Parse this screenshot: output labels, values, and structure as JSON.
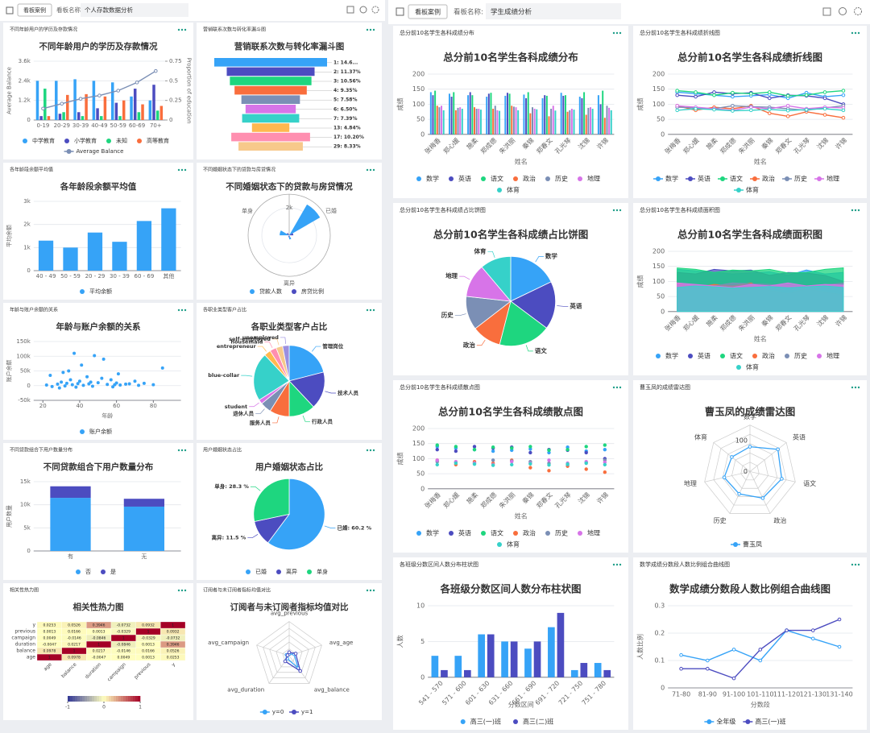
{
  "left": {
    "header": {
      "tab": "看板案例",
      "name_label": "看板名称:",
      "name": "个人存款数据分析"
    },
    "panels": [
      {
        "header": "不同年龄用户的学历及存款情况",
        "title": "不同年龄用户的学历及存款情况",
        "type": "bar",
        "categories": [
          "0-19",
          "20-29",
          "30-39",
          "40-49",
          "50-59",
          "60-69",
          "70+"
        ],
        "ylim": [
          0,
          3600
        ],
        "yticks": [
          0,
          {
            "value": 1200,
            "label": "1.2k"
          },
          {
            "value": 2400,
            "label": "2.4k"
          },
          {
            "value": 3600,
            "label": "3.6k"
          }
        ],
        "y2lim": [
          0,
          0.75
        ],
        "y2ticks": [
          0,
          0.25,
          0.5,
          0.75
        ],
        "ylabel": "Average Balance",
        "y2label": "Proportion of education",
        "series": [
          {
            "name": "中学教育",
            "color": "#36a3f7",
            "axis": "y2",
            "values": [
              0.5,
              0.5,
              0.52,
              0.5,
              0.48,
              0.3,
              0.25
            ]
          },
          {
            "name": "小学教育",
            "color": "#4c4cc0",
            "axis": "y2",
            "values": [
              0.05,
              0.08,
              0.1,
              0.15,
              0.22,
              0.4,
              0.45
            ]
          },
          {
            "name": "未知",
            "color": "#1ed67f",
            "axis": "y2",
            "values": [
              0.4,
              0.1,
              0.05,
              0.05,
              0.05,
              0.1,
              0.12
            ]
          },
          {
            "name": "高等教育",
            "color": "#f96e3d",
            "axis": "y2",
            "values": [
              0.05,
              0.32,
              0.33,
              0.3,
              0.25,
              0.2,
              0.18
            ]
          },
          {
            "name": "Average Balance",
            "color": "#7b8fb5",
            "type": "line",
            "values": [
              700,
              1000,
              1300,
              1500,
              1800,
              2300,
              3000
            ]
          }
        ]
      },
      {
        "header": "营销联系次数与转化率漏斗图",
        "title": "营销联系次数与转化率漏斗图",
        "type": "funnel",
        "labels": [
          "1: 14.6...",
          "2: 11.37%",
          "3: 10.56%",
          "4: 9.35%",
          "5: 7.58%",
          "6: 6.50%",
          "7: 7.39%",
          "13: 4.84%",
          "17: 10.20%",
          "29: 8.33%"
        ],
        "values": [
          14.6,
          11.37,
          10.56,
          9.35,
          7.58,
          6.5,
          7.39,
          4.84,
          10.2,
          8.33
        ],
        "colors": [
          "#36a3f7",
          "#4c4cc0",
          "#1ed67f",
          "#f96e3d",
          "#7b8fb5",
          "#d774e8",
          "#36d1c9",
          "#ffb84f",
          "#ff8fb0",
          "#f7c98b"
        ]
      },
      {
        "header": "各年龄段余额平均值",
        "title": "各年龄段余额平均值",
        "type": "bar",
        "categories": [
          "40 - 49",
          "50 - 59",
          "20 - 29",
          "30 - 39",
          "60 - 69",
          "其他"
        ],
        "ylim": [
          0,
          3000
        ],
        "yticks": [
          0,
          {
            "value": 1000,
            "label": "1k"
          },
          {
            "value": 2000,
            "label": "2k"
          },
          {
            "value": 3000,
            "label": "3k"
          }
        ],
        "ylabel": "平均余额",
        "series": [
          {
            "name": "平均余额",
            "color": "#36a3f7",
            "values": [
              1300,
              1000,
              1650,
              1250,
              2150,
              2700
            ]
          }
        ]
      },
      {
        "header": "不同婚姻状态下的贷款与房贷情况",
        "title": "不同婚姻状态下的贷款与房贷情况",
        "type": "polar",
        "categories": [
          "已婚",
          "离异",
          "单身"
        ],
        "rlim": [
          0,
          3000
        ],
        "rticks": [
          {
            "value": 2000,
            "label": "2k"
          }
        ],
        "series": [
          {
            "name": "贷款人数",
            "color": "#36a3f7",
            "values": [
              2600,
              300,
              700
            ]
          },
          {
            "name": "房贷比例",
            "color": "#4c4cc0",
            "values": [
              300,
              150,
              200
            ]
          }
        ]
      },
      {
        "header": "年龄与账户余额的关系",
        "title": "年龄与账户余额的关系",
        "type": "scatter",
        "xlabel": "年龄",
        "ylabel": "账户余额",
        "xlim": [
          15,
          95
        ],
        "xticks": [
          20,
          40,
          60,
          80
        ],
        "ylim": [
          -50000,
          150000
        ],
        "yticks": [
          {
            "value": -50000,
            "label": "-50k"
          },
          0,
          {
            "value": 50000,
            "label": "50k"
          },
          {
            "value": 100000,
            "label": "100k"
          },
          {
            "value": 150000,
            "label": "150k"
          }
        ],
        "series": [
          {
            "name": "账户余额",
            "color": "#36a3f7",
            "x": [
              22,
              25,
              28,
              30,
              32,
              33,
              35,
              36,
              38,
              40,
              42,
              44,
              45,
              47,
              50,
              52,
              55,
              58,
              60,
              62,
              65,
              70,
              75,
              80,
              85,
              24,
              31,
              37,
              41,
              48,
              53,
              57,
              29,
              34,
              39,
              46,
              59,
              61,
              67,
              72
            ],
            "values": [
              2000,
              -3000,
              5000,
              12000,
              -1000,
              8000,
              20000,
              3000,
              -5000,
              15000,
              1000,
              30000,
              6000,
              -2000,
              10000,
              25000,
              4000,
              -4000,
              9000,
              2000,
              5000,
              15000,
              8000,
              3000,
              60000,
              35000,
              45000,
              110000,
              70000,
              102000,
              90000,
              20000,
              -8000,
              50000,
              7000,
              12000,
              3000,
              40000,
              6000,
              1000
            ]
          }
        ]
      },
      {
        "header": "各职业类型客户占比",
        "title": "各职业类型客户占比",
        "type": "pie",
        "legend": false,
        "categories": [
          "管理岗位",
          "技术人员",
          "行政人员",
          "服务人员",
          "退休人员",
          "student",
          "blue-collar",
          "entrepreneur",
          "housemaid",
          "self-employed",
          "unemployed"
        ],
        "values": [
          21,
          17,
          12,
          9,
          5,
          2,
          22,
          3,
          3,
          3,
          3
        ],
        "colors": [
          "#36a3f7",
          "#4c4cc0",
          "#1ed67f",
          "#f96e3d",
          "#7b8fb5",
          "#d774e8",
          "#36d1c9",
          "#ffb84f",
          "#ff8fb0",
          "#f7c98b",
          "#9b8fe0"
        ]
      },
      {
        "header": "不同贷款组合下用户数量分布",
        "title": "不同贷款组合下用户数量分布",
        "type": "bar",
        "stacked": true,
        "categories": [
          "有",
          "无"
        ],
        "ylabel": "用户数量",
        "ylim": [
          0,
          15000
        ],
        "yticks": [
          0,
          {
            "value": 5000,
            "label": "5k"
          },
          {
            "value": 10000,
            "label": "10k"
          },
          {
            "value": 15000,
            "label": "15k"
          }
        ],
        "series": [
          {
            "name": "否",
            "color": "#36a3f7",
            "values": [
              11500,
              9600
            ]
          },
          {
            "name": "是",
            "color": "#4c4cc0",
            "values": [
              2500,
              1700
            ]
          }
        ]
      },
      {
        "header": "用户婚姻状态占比",
        "title": "用户婚姻状态占比",
        "type": "pie",
        "legend": true,
        "categories": [
          "已婚",
          "离异",
          "单身"
        ],
        "values": [
          60.2,
          11.5,
          28.3
        ],
        "value_labels": [
          "已婚: 60.2 %",
          "离异: 11.5 %",
          "单身: 28.3 %"
        ],
        "colors": [
          "#36a3f7",
          "#4c4cc0",
          "#1ed67f"
        ]
      },
      {
        "header": "相关性热力图",
        "title": "相关性热力图",
        "type": "heatmap",
        "labels": [
          "age",
          "balance",
          "duration",
          "campaign",
          "previous",
          "y"
        ],
        "matrix": [
          [
            1,
            0.0978,
            -0.0047,
            0.0049,
            0.0013,
            0.0253
          ],
          [
            0.0978,
            1,
            0.0217,
            -0.0146,
            0.0166,
            0.0526
          ],
          [
            -0.0047,
            0.0217,
            1,
            -0.0846,
            0.0013,
            0.3946
          ],
          [
            0.0049,
            -0.0146,
            -0.0846,
            1,
            -0.0329,
            -0.0732
          ],
          [
            0.0013,
            0.0166,
            0.0013,
            -0.0329,
            1,
            0.0932
          ],
          [
            0.0253,
            0.0526,
            0.3946,
            -0.0732,
            0.0932,
            1
          ]
        ],
        "clim": [
          -1,
          1
        ],
        "cticks": [
          -1,
          0,
          1
        ]
      },
      {
        "header": "订阅者与未订阅者指标均值对比",
        "title": "订阅者与未订阅者指标均值对比",
        "type": "radar",
        "indicators": [
          "avg_previous",
          "avg_age",
          "avg_balance",
          "avg_duration",
          "avg_campaign"
        ],
        "rlim": [
          0,
          1
        ],
        "series": [
          {
            "name": "y=0",
            "color": "#36a3f7",
            "values": [
              0.05,
              0.15,
              0.45,
              0.1,
              0.08
            ]
          },
          {
            "name": "y=1",
            "color": "#4c4cc0",
            "values": [
              0.1,
              0.2,
              0.55,
              0.2,
              0.05
            ]
          }
        ]
      }
    ]
  },
  "right": {
    "header": {
      "tab": "看板案例",
      "name_label": "看板名称:",
      "name": "学生成绩分析"
    },
    "scores": {
      "categories": [
        "张梅香",
        "郑心媛",
        "施柔",
        "郑成德",
        "朱洪丽",
        "秦锦",
        "郑春文",
        "孔光琴",
        "沈锦",
        "许锦"
      ],
      "ylim": [
        0,
        200
      ],
      "yticks": [
        0,
        50,
        100,
        150,
        200
      ],
      "ylabel": "成绩",
      "xlabel": "姓名",
      "series": [
        {
          "name": "数学",
          "color": "#36a3f7",
          "values": [
            140,
            135,
            130,
            125,
            128,
            132,
            120,
            138,
            125,
            130
          ]
        },
        {
          "name": "英语",
          "color": "#4c4cc0",
          "values": [
            130,
            125,
            140,
            135,
            138,
            120,
            130,
            128,
            120,
            100
          ]
        },
        {
          "name": "语文",
          "color": "#1ed67f",
          "values": [
            145,
            140,
            130,
            138,
            135,
            140,
            128,
            130,
            140,
            145
          ]
        },
        {
          "name": "政治",
          "color": "#f96e3d",
          "values": [
            95,
            80,
            90,
            85,
            95,
            70,
            60,
            75,
            65,
            55
          ]
        },
        {
          "name": "历史",
          "color": "#7b8fb5",
          "values": [
            90,
            88,
            85,
            95,
            92,
            90,
            85,
            80,
            88,
            95
          ]
        },
        {
          "name": "地理",
          "color": "#d774e8",
          "values": [
            95,
            90,
            85,
            80,
            90,
            85,
            95,
            85,
            90,
            88
          ]
        },
        {
          "name": "体育",
          "color": "#36d1c9",
          "values": [
            80,
            85,
            82,
            78,
            80,
            83,
            79,
            82,
            85,
            80
          ]
        }
      ]
    },
    "panels": [
      {
        "header": "总分前10名学生各科成绩分布",
        "title": "总分前10名学生各科成绩分布",
        "type": "bar",
        "rotate_labels": true
      },
      {
        "header": "总分前10名学生各科成绩折线图",
        "title": "总分前10名学生各科成绩折线图",
        "type": "line",
        "rotate_labels": true
      },
      {
        "header": "总分前10名学生各科成绩占比饼图",
        "title": "总分前10名学生各科成绩占比饼图",
        "type": "pie",
        "legend": false,
        "categories": [
          "数学",
          "英语",
          "语文",
          "政治",
          "历史",
          "地理",
          "体育"
        ],
        "values": [
          1303,
          1266,
          1371,
          770,
          888,
          883,
          814
        ],
        "colors": [
          "#36a3f7",
          "#4c4cc0",
          "#1ed67f",
          "#f96e3d",
          "#7b8fb5",
          "#d774e8",
          "#36d1c9"
        ]
      },
      {
        "header": "总分前10名学生各科成绩面积图",
        "title": "总分前10名学生各科成绩面积图",
        "type": "area",
        "rotate_labels": true
      },
      {
        "header": "总分前10名学生各科成绩散点图",
        "title": "总分前10名学生各科成绩散点图",
        "type": "scatter",
        "rotate_labels": true
      },
      {
        "header": "曹玉凤的成绩雷达图",
        "title": "曹玉凤的成绩雷达图",
        "type": "radar",
        "indicators": [
          "数学",
          "英语",
          "语文",
          "政治",
          "历史",
          "地理",
          "体育"
        ],
        "rlim": [
          0,
          150
        ],
        "rticks": [
          0,
          100
        ],
        "series": [
          {
            "name": "曹玉凤",
            "color": "#36a3f7",
            "values": [
              80,
              115,
              105,
              95,
              80,
              85,
              75
            ]
          }
        ]
      },
      {
        "header": "各班级分数区间人数分布柱状图",
        "title": "各班级分数区间人数分布柱状图",
        "type": "bar",
        "rotate_labels": true,
        "categories": [
          "541 - 570",
          "571 - 600",
          "601 - 630",
          "631 - 660",
          "661 - 690",
          "691 - 720",
          "721 - 750",
          "751 - 780"
        ],
        "ylim": [
          0,
          10
        ],
        "yticks": [
          0,
          5,
          10
        ],
        "ylabel": "人数",
        "xlabel": "分数区间",
        "series": [
          {
            "name": "高三(一)班",
            "color": "#36a3f7",
            "values": [
              3,
              3,
              6,
              5,
              4,
              7,
              1,
              2
            ]
          },
          {
            "name": "高三(二)班",
            "color": "#4c4cc0",
            "values": [
              1,
              1,
              6,
              5,
              5,
              9,
              2,
              1
            ]
          }
        ]
      },
      {
        "header": "数学成绩分数段人数比例组合曲线图",
        "title": "数学成绩分数段人数比例组合曲线图",
        "type": "line",
        "categories": [
          "71-80",
          "81-90",
          "91-100",
          "101-110",
          "111-120",
          "121-130",
          "131-140"
        ],
        "ylim": [
          0,
          0.3
        ],
        "yticks": [
          0,
          0.1,
          0.2,
          0.3
        ],
        "ylabel": "人数比例",
        "xlabel": "分数段",
        "series": [
          {
            "name": "全年级",
            "color": "#36a3f7",
            "values": [
              0.12,
              0.1,
              0.14,
              0.1,
              0.21,
              0.18,
              0.15
            ]
          },
          {
            "name": "高三(一)班",
            "color": "#4c4cc0",
            "values": [
              0.07,
              0.07,
              0.035,
              0.14,
              0.21,
              0.21,
              0.25
            ]
          }
        ]
      }
    ]
  }
}
